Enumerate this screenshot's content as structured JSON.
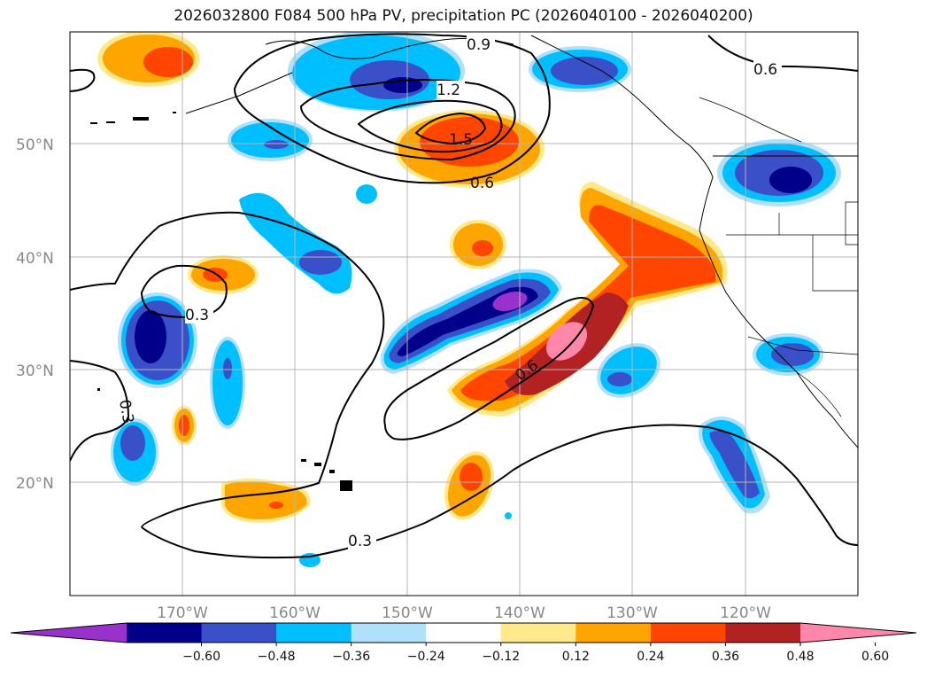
{
  "title": "2026032800 F084 500 hPa PV, precipitation PC (2026040100 - 2026040200)",
  "map": {
    "lat_ticks": [
      "50°N",
      "40°N",
      "30°N",
      "20°N"
    ],
    "lon_ticks": [
      "170°W",
      "160°W",
      "150°W",
      "140°W",
      "130°W",
      "120°W"
    ],
    "grid": true
  },
  "contour_labels": [
    "0.9",
    "1.2",
    "1.5",
    "0.6",
    "0.3",
    "0.6",
    "0.3",
    "0.3",
    "0.6"
  ],
  "colorbar": {
    "colors": [
      "#9932cc",
      "#00008b",
      "#3a50c8",
      "#00bfff",
      "#b0e0fa",
      "#ffffff",
      "#ffe98a",
      "#ffa500",
      "#ff4500",
      "#b22222",
      "#ff88aa"
    ],
    "tick_labels": [
      "−0.60",
      "−0.48",
      "−0.36",
      "−0.24",
      "−0.12",
      "0.12",
      "0.24",
      "0.36",
      "0.48",
      "0.60"
    ]
  }
}
